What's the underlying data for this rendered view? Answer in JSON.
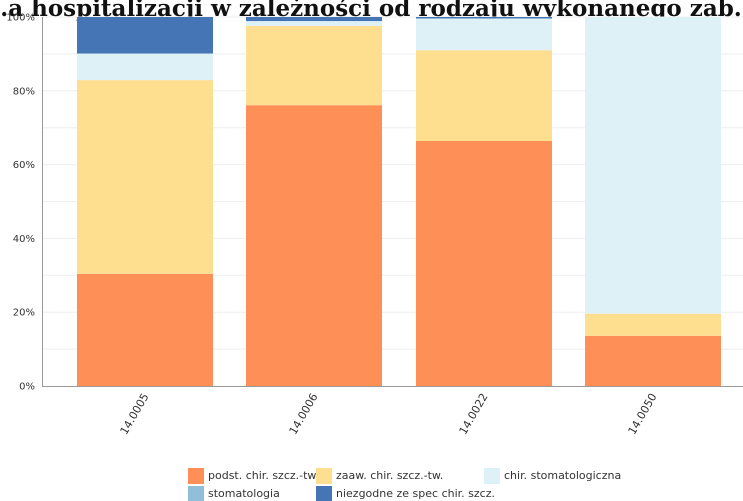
{
  "chart_data": {
    "type": "bar",
    "stacked": true,
    "title": "…a hospitalizacji w zależności od rodzaju wykonanego zab…",
    "categories": [
      "14.0005",
      "14.0006",
      "14.0022",
      "14.0050"
    ],
    "ylim": [
      0,
      100
    ],
    "y_ticks": [
      "0%",
      "20%",
      "40%",
      "60%",
      "80%",
      "100%"
    ],
    "grid": true,
    "legend_position": "bottom",
    "series": [
      {
        "name": "podst. chir. szcz.-tw.",
        "color": "#fd8f57",
        "values": [
          30.4,
          76.1,
          66.4,
          13.6
        ]
      },
      {
        "name": "zaaw. chir. szcz.-tw.",
        "color": "#fddf8f",
        "values": [
          52.5,
          21.5,
          24.6,
          6.0
        ]
      },
      {
        "name": "chir. stomatologiczna",
        "color": "#ddf1f7",
        "values": [
          7.2,
          1.3,
          8.6,
          80.4
        ]
      },
      {
        "name": "stomatologia",
        "color": "#90bedb",
        "values": [
          0,
          0,
          0,
          0
        ]
      },
      {
        "name": "niezgodne ze spec chir. szcz.",
        "color": "#4575b4",
        "values": [
          9.9,
          1.1,
          0.4,
          0
        ]
      }
    ]
  }
}
